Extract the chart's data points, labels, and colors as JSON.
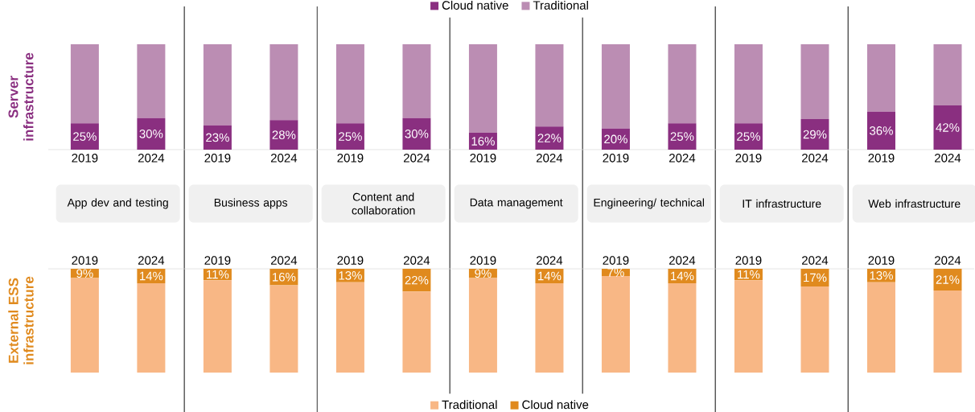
{
  "chart_data": [
    {
      "type": "bar",
      "stacked": true,
      "ylabel": "Server infrastructure",
      "categories": [
        "2019",
        "2024",
        "2019",
        "2024",
        "2019",
        "2024",
        "2019",
        "2024",
        "2019",
        "2024",
        "2019",
        "2024",
        "2019",
        "2024"
      ],
      "tick_labels": "x",
      "legend": "top",
      "annotations": [
        "App dev and testing",
        "Business apps",
        "Content and collaboration",
        "Data management",
        "Engineering/ technical",
        "IT infrastructure",
        "Web infrastructure"
      ],
      "series": [
        {
          "name": "Cloud native",
          "color": "#8a2f80",
          "values": [
            25,
            30,
            23,
            28,
            25,
            30,
            16,
            22,
            20,
            25,
            25,
            29,
            36,
            42
          ],
          "value_labels": [
            "25%",
            "30%",
            "23%",
            "28%",
            "25%",
            "30%",
            "16%",
            "22%",
            "20%",
            "25%",
            "25%",
            "29%",
            "36%",
            "42%"
          ]
        },
        {
          "name": "Traditional",
          "color": "#bb8db3",
          "values": [
            75,
            70,
            77,
            72,
            75,
            70,
            84,
            78,
            80,
            75,
            75,
            71,
            64,
            58
          ]
        }
      ]
    },
    {
      "type": "bar",
      "stacked": true,
      "ylabel": "External ESS infrastructure",
      "categories": [
        "2019",
        "2024",
        "2019",
        "2024",
        "2019",
        "2024",
        "2019",
        "2024",
        "2019",
        "2024",
        "2019",
        "2024",
        "2019",
        "2024"
      ],
      "tick_labels": "x",
      "legend": "bottom",
      "series": [
        {
          "name": "Traditional",
          "color": "#f8b785",
          "values": [
            91,
            86,
            89,
            84,
            87,
            78,
            91,
            86,
            93,
            86,
            89,
            83,
            87,
            79
          ]
        },
        {
          "name": "Cloud native",
          "color": "#e08a1e",
          "values": [
            9,
            14,
            11,
            16,
            13,
            22,
            9,
            14,
            7,
            14,
            11,
            17,
            13,
            21
          ],
          "value_labels": [
            "9%",
            "14%",
            "11%",
            "16%",
            "13%",
            "22%",
            "9%",
            "14%",
            "7%",
            "14%",
            "11%",
            "17%",
            "13%",
            "21%"
          ]
        }
      ]
    }
  ]
}
